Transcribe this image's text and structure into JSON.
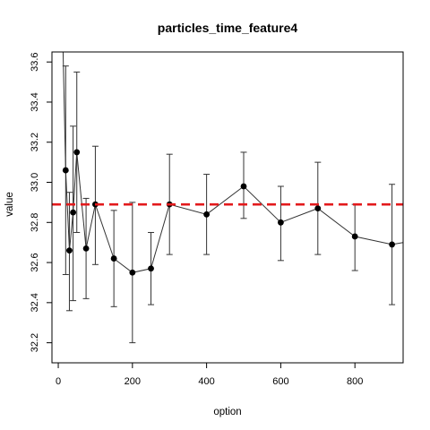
{
  "chart_data": {
    "type": "line",
    "title": "particles_time_feature4",
    "xlabel": "option",
    "ylabel": "value",
    "xlim": [
      -17,
      930
    ],
    "ylim": [
      32.1,
      33.65
    ],
    "x_ticks": [
      0,
      200,
      400,
      600,
      800
    ],
    "y_ticks": [
      32.2,
      32.4,
      32.6,
      32.8,
      33.0,
      33.2,
      33.4,
      33.6
    ],
    "x_tick_labels": [
      "0",
      "200",
      "400",
      "600",
      "800"
    ],
    "y_tick_labels": [
      "32.2",
      "32.4",
      "32.6",
      "32.8",
      "33.0",
      "33.2",
      "33.4",
      "33.6"
    ],
    "reference_line": {
      "value": 32.89,
      "color": "#e31a1c",
      "style": "dashed"
    },
    "series": [
      {
        "x": [
          10,
          20,
          30,
          40,
          50,
          75,
          100,
          150,
          200,
          250,
          300,
          400,
          500,
          600,
          700,
          800,
          900
        ],
        "values": [
          33.9,
          33.06,
          32.66,
          32.85,
          33.15,
          32.67,
          32.89,
          32.62,
          32.55,
          32.57,
          32.89,
          32.84,
          32.98,
          32.8,
          32.87,
          32.73,
          32.69
        ],
        "error_low": [
          null,
          32.54,
          32.36,
          32.41,
          32.75,
          32.42,
          32.59,
          32.38,
          32.2,
          32.39,
          32.64,
          32.64,
          32.82,
          32.61,
          32.64,
          32.56,
          32.39
        ],
        "error_high": [
          null,
          33.58,
          32.95,
          33.28,
          33.55,
          32.92,
          33.18,
          32.86,
          32.9,
          32.75,
          33.14,
          33.04,
          33.15,
          32.98,
          33.1,
          32.89,
          32.99
        ]
      }
    ],
    "line_end": {
      "x": 930,
      "value": 32.7
    }
  }
}
